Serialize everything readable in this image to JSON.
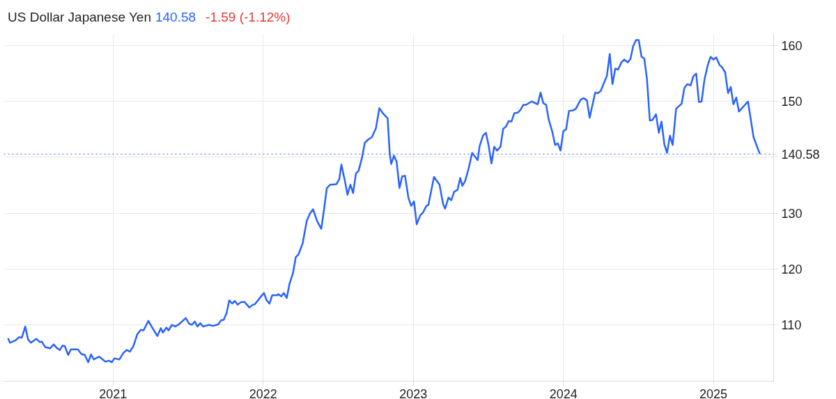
{
  "chart_data": {
    "type": "line",
    "title": "US Dollar Japanese Yen",
    "annotations": [
      "140.58",
      "-1.59 (-1.12%)"
    ],
    "xlim": [
      2020.272,
      2025.401
    ],
    "xticks": [
      2021,
      2022,
      2023,
      2024,
      2025
    ],
    "ylim": [
      99.9,
      162
    ],
    "yticks": [
      110,
      120,
      130,
      {
        "value": 140,
        "label": null
      },
      150,
      160
    ],
    "grid": true,
    "marker": "none",
    "line_style": "solid",
    "ref_lines": [
      {
        "axis": "y",
        "value": 140.58,
        "label": "140.58",
        "color": "#2962ff",
        "line_style": "dotted"
      }
    ],
    "series": [
      {
        "color": "#2962ff",
        "x": [
          2020.3,
          2020.313,
          2020.35,
          2020.373,
          2020.392,
          2020.415,
          2020.433,
          2020.452,
          2020.489,
          2020.512,
          2020.525,
          2020.548,
          2020.581,
          2020.604,
          2020.627,
          2020.645,
          2020.664,
          2020.678,
          2020.701,
          2020.719,
          2020.765,
          2020.788,
          2020.811,
          2020.834,
          2020.853,
          2020.871,
          2020.908,
          2020.949,
          2020.972,
          2020.991,
          2021.009,
          2021.042,
          2021.069,
          2021.092,
          2021.111,
          2021.134,
          2021.161,
          2021.184,
          2021.203,
          2021.235,
          2021.272,
          2021.295,
          2021.318,
          2021.332,
          2021.355,
          2021.369,
          2021.392,
          2021.415,
          2021.438,
          2021.484,
          2021.507,
          2021.525,
          2021.544,
          2021.562,
          2021.581,
          2021.599,
          2021.641,
          2021.664,
          2021.701,
          2021.719,
          2021.737,
          2021.756,
          2021.774,
          2021.793,
          2021.811,
          2021.83,
          2021.853,
          2021.876,
          2021.908,
          2021.931,
          2021.945,
          2021.986,
          2022.005,
          2022.023,
          2022.042,
          2022.06,
          2022.092,
          2022.101,
          2022.12,
          2022.138,
          2022.157,
          2022.175,
          2022.198,
          2022.217,
          2022.235,
          2022.263,
          2022.29,
          2022.313,
          2022.332,
          2022.359,
          2022.387,
          2022.406,
          2022.424,
          2022.447,
          2022.488,
          2022.507,
          2022.521,
          2022.544,
          2022.562,
          2022.581,
          2022.599,
          2022.618,
          2022.636,
          2022.659,
          2022.677,
          2022.7,
          2022.724,
          2022.751,
          2022.774,
          2022.797,
          2022.829,
          2022.843,
          2022.853,
          2022.871,
          2022.889,
          2022.908,
          2022.926,
          2022.945,
          2022.968,
          2022.986,
          2023.005,
          2023.023,
          2023.046,
          2023.064,
          2023.088,
          2023.101,
          2023.138,
          2023.175,
          2023.198,
          2023.212,
          2023.235,
          2023.253,
          2023.272,
          2023.295,
          2023.313,
          2023.327,
          2023.346,
          2023.369,
          2023.392,
          2023.429,
          2023.442,
          2023.465,
          2023.484,
          2023.502,
          2023.521,
          2023.539,
          2023.558,
          2023.581,
          2023.599,
          2023.617,
          2023.636,
          2023.654,
          2023.673,
          2023.696,
          2023.714,
          2023.733,
          2023.751,
          2023.788,
          2023.829,
          2023.848,
          2023.866,
          2023.885,
          2023.903,
          2023.926,
          2023.945,
          2023.963,
          2023.981,
          2024.0,
          2024.018,
          2024.037,
          2024.064,
          2024.083,
          2024.115,
          2024.134,
          2024.157,
          2024.175,
          2024.212,
          2024.23,
          2024.249,
          2024.29,
          2024.309,
          2024.327,
          2024.346,
          2024.364,
          2024.387,
          2024.405,
          2024.428,
          2024.447,
          2024.465,
          2024.484,
          2024.502,
          2024.521,
          2024.539,
          2024.557,
          2024.576,
          2024.594,
          2024.617,
          2024.636,
          2024.654,
          2024.673,
          2024.691,
          2024.71,
          2024.728,
          2024.751,
          2024.788,
          2024.806,
          2024.825,
          2024.848,
          2024.866,
          2024.885,
          2024.903,
          2024.921,
          2024.94,
          2024.963,
          2024.981,
          2025.0,
          2025.018,
          2025.041,
          2025.055,
          2025.078,
          2025.097,
          2025.115,
          2025.133,
          2025.152,
          2025.17,
          2025.23,
          2025.267,
          2025.309
        ],
        "values": [
          107.6,
          106.8,
          107.2,
          107.8,
          107.7,
          109.7,
          107.4,
          106.8,
          107.5,
          106.9,
          107.0,
          106.0,
          105.8,
          106.5,
          105.8,
          105.5,
          106.3,
          106.2,
          104.6,
          105.6,
          105.6,
          104.8,
          104.6,
          103.3,
          104.7,
          103.8,
          104.3,
          103.4,
          103.6,
          103.3,
          104.0,
          103.8,
          105.0,
          105.5,
          105.2,
          106.1,
          108.3,
          109.1,
          109.0,
          110.7,
          109.0,
          108.0,
          109.4,
          108.6,
          109.5,
          109.0,
          110.0,
          109.7,
          110.1,
          111.2,
          110.2,
          110.0,
          110.6,
          109.7,
          110.3,
          109.7,
          110.0,
          109.8,
          110.1,
          110.8,
          110.9,
          112.1,
          114.4,
          113.8,
          114.3,
          113.6,
          114.1,
          114.1,
          113.1,
          113.6,
          113.7,
          115.1,
          115.7,
          114.4,
          113.8,
          115.3,
          115.3,
          115.5,
          115.1,
          115.7,
          114.8,
          117.3,
          119.2,
          122.1,
          122.6,
          124.6,
          128.6,
          130.0,
          130.7,
          128.6,
          127.2,
          130.8,
          134.5,
          135.1,
          135.2,
          136.1,
          138.7,
          135.8,
          133.3,
          135.1,
          133.6,
          137.1,
          137.6,
          140.0,
          142.6,
          143.2,
          143.6,
          145.2,
          148.8,
          147.9,
          147.0,
          140.7,
          138.8,
          140.3,
          139.2,
          134.5,
          136.6,
          136.7,
          132.7,
          131.3,
          132.1,
          128.0,
          129.6,
          130.1,
          131.3,
          131.5,
          136.5,
          135.1,
          131.7,
          130.8,
          132.8,
          132.3,
          133.8,
          134.2,
          136.3,
          134.9,
          135.8,
          138.0,
          140.8,
          139.5,
          142.0,
          143.9,
          144.4,
          142.1,
          138.9,
          141.9,
          141.2,
          141.9,
          145.1,
          145.5,
          146.5,
          146.4,
          147.9,
          148.0,
          148.5,
          149.4,
          149.4,
          150.0,
          149.5,
          151.6,
          149.7,
          149.4,
          146.7,
          144.6,
          142.2,
          142.5,
          141.2,
          144.7,
          145.0,
          148.3,
          148.4,
          148.7,
          150.3,
          150.6,
          150.2,
          147.1,
          151.6,
          151.5,
          151.9,
          154.6,
          158.5,
          153.1,
          155.9,
          155.7,
          157.0,
          157.5,
          157.0,
          157.6,
          159.9,
          161.0,
          161.0,
          158.0,
          157.7,
          154.0,
          146.6,
          146.7,
          147.7,
          144.4,
          146.4,
          142.3,
          140.8,
          143.9,
          142.2,
          148.7,
          149.6,
          152.4,
          153.1,
          152.9,
          154.5,
          155.0,
          149.9,
          150.0,
          153.9,
          156.6,
          158.0,
          157.5,
          157.9,
          156.5,
          156.2,
          155.2,
          151.5,
          152.6,
          149.5,
          150.7,
          148.2,
          150.0,
          143.6,
          140.6
        ]
      }
    ]
  }
}
